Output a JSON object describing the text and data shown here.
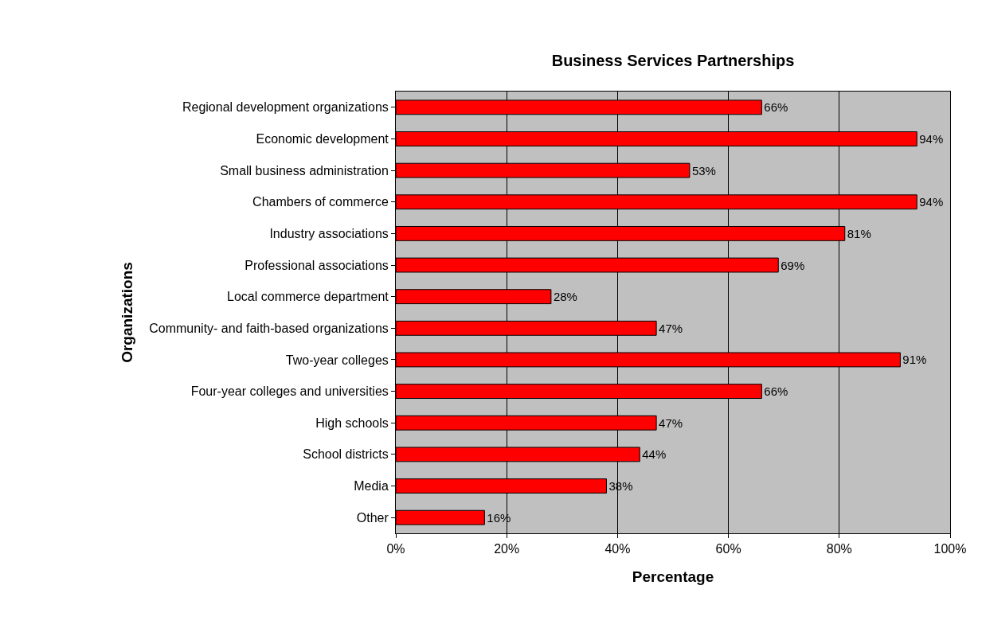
{
  "chart_data": {
    "type": "bar",
    "orientation": "horizontal",
    "title": "Business Services Partnerships",
    "xlabel": "Percentage",
    "ylabel": "Organizations",
    "categories": [
      "Regional development organizations",
      "Economic development",
      "Small business administration",
      "Chambers of commerce",
      "Industry associations",
      "Professional associations",
      "Local commerce department",
      "Community- and faith-based organizations",
      "Two-year colleges",
      "Four-year colleges and universities",
      "High schools",
      "School districts",
      "Media",
      "Other"
    ],
    "values": [
      66,
      94,
      53,
      94,
      81,
      69,
      28,
      47,
      91,
      66,
      47,
      44,
      38,
      16
    ],
    "value_labels": [
      "66%",
      "94%",
      "53%",
      "94%",
      "81%",
      "69%",
      "28%",
      "47%",
      "91%",
      "66%",
      "47%",
      "44%",
      "38%",
      "16%"
    ],
    "color": "#ff0000",
    "xlim": [
      0,
      100
    ],
    "xticks": [
      {
        "value": 0,
        "label": "0%"
      },
      {
        "value": 20,
        "label": "20%"
      },
      {
        "value": 40,
        "label": "40%"
      },
      {
        "value": 60,
        "label": "60%"
      },
      {
        "value": 80,
        "label": "80%"
      },
      {
        "value": 100,
        "label": "100%"
      }
    ],
    "grid": "x"
  }
}
